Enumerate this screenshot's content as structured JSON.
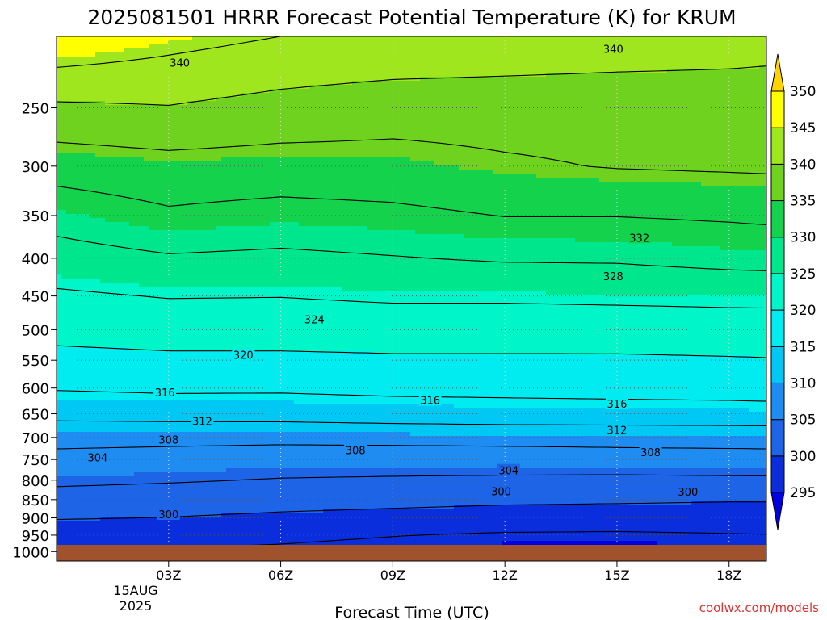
{
  "chart_data": {
    "type": "contour",
    "title": "2025081501 HRRR Forecast Potential Temperature (K) for KRUM",
    "xlabel": "Forecast Time (UTC)",
    "ylabel": "",
    "credit": "coolwx.com/models",
    "x_ticks": [
      {
        "hour": 3,
        "label": "03Z"
      },
      {
        "hour": 6,
        "label": "06Z"
      },
      {
        "hour": 9,
        "label": "09Z"
      },
      {
        "hour": 12,
        "label": "12Z"
      },
      {
        "hour": 15,
        "label": "15Z"
      },
      {
        "hour": 18,
        "label": "18Z"
      }
    ],
    "date_labels": [
      "15AUG",
      "2025"
    ],
    "xlim": [
      0,
      19
    ],
    "y_scale": "log",
    "ylim": [
      1030,
      200
    ],
    "y_ticks": [
      250,
      300,
      350,
      400,
      450,
      500,
      550,
      600,
      650,
      700,
      750,
      800,
      850,
      900,
      950,
      1000
    ],
    "ground_pressure": 1000,
    "colorbar": {
      "levels": [
        295,
        300,
        305,
        310,
        315,
        320,
        325,
        330,
        335,
        340,
        345,
        350
      ],
      "colors": [
        "#0000e0",
        "#0a2edc",
        "#1e64e6",
        "#1e8cf0",
        "#00c8f5",
        "#00ecf0",
        "#00f5c8",
        "#00e68c",
        "#14d24b",
        "#6ed21e",
        "#a0e61e",
        "#ffff00",
        "#ffd200"
      ]
    },
    "theta_profiles": {
      "levels": [
        1000,
        950,
        900,
        850,
        800,
        750,
        700,
        650,
        600,
        550,
        500,
        450,
        400,
        350,
        300,
        250,
        200
      ],
      "series": [
        {
          "hour": 0,
          "theta": [
            295.9,
            297.2,
            300.3,
            302.6,
            304.7,
            306.7,
            309.4,
            313.1,
            316.3,
            318.9,
            321.2,
            323.4,
            326.4,
            329.5,
            333.7,
            339.3,
            347.6
          ]
        },
        {
          "hour": 3,
          "theta": [
            295.8,
            296.9,
            299.9,
            302.3,
            304.3,
            306.3,
            309.2,
            313.4,
            316.7,
            319.3,
            321.6,
            324.2,
            327.6,
            331.4,
            334.6,
            339.8,
            345.5
          ]
        },
        {
          "hour": 6,
          "theta": [
            295.5,
            296.6,
            299.2,
            301.7,
            303.8,
            305.8,
            309.1,
            313.5,
            316.6,
            319.3,
            321.6,
            324.1,
            327.2,
            330.6,
            334.3,
            338.6,
            344.0
          ]
        },
        {
          "hour": 9,
          "theta": [
            295.0,
            296.1,
            298.6,
            301.3,
            303.6,
            305.7,
            309.3,
            313.9,
            317.0,
            319.5,
            321.8,
            324.6,
            327.8,
            331.1,
            334.5,
            337.7,
            343.5
          ]
        },
        {
          "hour": 12,
          "theta": [
            294.3,
            295.6,
            298.1,
            300.8,
            303.4,
            305.9,
            309.4,
            314.2,
            317.1,
            319.5,
            321.8,
            324.6,
            328.4,
            332.1,
            335.5,
            337.6,
            343.0
          ]
        },
        {
          "hour": 15,
          "theta": [
            294.2,
            295.5,
            297.9,
            300.6,
            303.2,
            306.2,
            309.5,
            314.3,
            317.3,
            319.5,
            321.9,
            324.8,
            328.5,
            332.1,
            336.2,
            337.5,
            342.5
          ]
        },
        {
          "hour": 18,
          "theta": [
            294.5,
            295.8,
            297.9,
            300.3,
            303.3,
            306.5,
            309.5,
            314.5,
            317.4,
            319.7,
            322.1,
            325.0,
            329.3,
            332.5,
            336.5,
            337.6,
            342.0
          ]
        },
        {
          "hour": 19,
          "theta": [
            294.6,
            295.9,
            297.9,
            300.3,
            303.3,
            306.6,
            309.5,
            314.6,
            317.5,
            319.8,
            322.2,
            325.0,
            329.5,
            332.7,
            336.6,
            337.6,
            341.7
          ]
        }
      ]
    },
    "contour_interval": 4,
    "contour_labels": [
      {
        "value": "340",
        "hour": 3.3,
        "p": 217
      },
      {
        "value": "340",
        "hour": 14.9,
        "p": 208
      },
      {
        "value": "332",
        "hour": 15.6,
        "p": 375
      },
      {
        "value": "328",
        "hour": 14.9,
        "p": 423
      },
      {
        "value": "324",
        "hour": 6.9,
        "p": 484
      },
      {
        "value": "320",
        "hour": 5.0,
        "p": 541
      },
      {
        "value": "316",
        "hour": 2.9,
        "p": 608
      },
      {
        "value": "316",
        "hour": 10.0,
        "p": 623
      },
      {
        "value": "316",
        "hour": 15.0,
        "p": 630
      },
      {
        "value": "312",
        "hour": 3.9,
        "p": 665
      },
      {
        "value": "312",
        "hour": 15.0,
        "p": 684
      },
      {
        "value": "308",
        "hour": 3.0,
        "p": 705
      },
      {
        "value": "308",
        "hour": 8.0,
        "p": 728
      },
      {
        "value": "308",
        "hour": 15.9,
        "p": 733
      },
      {
        "value": "304",
        "hour": 1.1,
        "p": 745
      },
      {
        "value": "304",
        "hour": 12.1,
        "p": 776
      },
      {
        "value": "300",
        "hour": 3.0,
        "p": 890
      },
      {
        "value": "300",
        "hour": 11.9,
        "p": 828
      },
      {
        "value": "300",
        "hour": 16.9,
        "p": 829
      }
    ]
  }
}
